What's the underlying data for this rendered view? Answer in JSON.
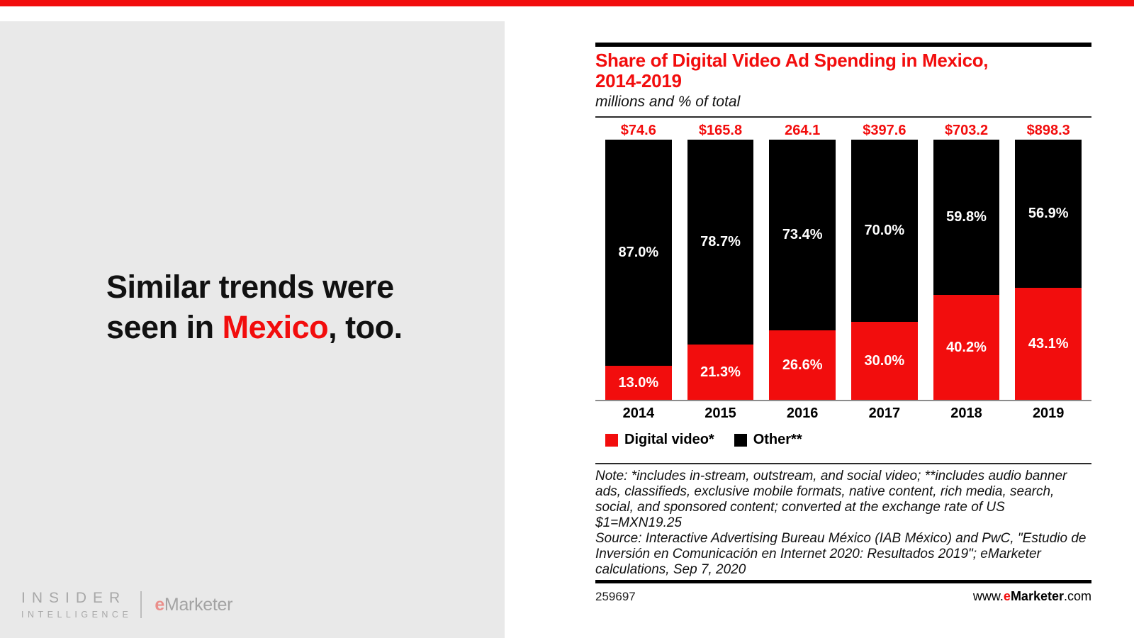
{
  "colors": {
    "accent_red": "#f20d0d",
    "bar_black": "#000000",
    "left_panel_gray": "#e9e9e9"
  },
  "left_panel": {
    "headline_line1": "Similar trends were",
    "headline_line2_prefix": "seen in ",
    "headline_highlight": "Mexico",
    "headline_line2_suffix": ", too.",
    "logo": {
      "line1": "INSIDER",
      "line2": "INTELLIGENCE",
      "brand_e": "e",
      "brand_rest": "Marketer"
    }
  },
  "chart": {
    "title_line1": "Share of Digital Video Ad Spending in Mexico,",
    "title_line2": "2014-2019",
    "subtitle": "millions and % of total",
    "note": "Note: *includes in-stream, outstream, and social video; **includes audio banner ads, classifieds, exclusive mobile formats, native content, rich media, search, social, and sponsored content; converted at the exchange rate of US $1=MXN19.25",
    "source": "Source: Interactive Advertising Bureau México (IAB México) and PwC, \"Estudio de Inversión en Comunicación en Internet 2020: Resultados 2019\"; eMarketer calculations, Sep 7, 2020",
    "chart_id": "259697",
    "website_prefix": "www.",
    "website_brand_e": "e",
    "website_brand_rest": "Marketer",
    "website_suffix": ".com",
    "legend": [
      {
        "label": "Digital video*",
        "color": "#f20d0d"
      },
      {
        "label": "Other**",
        "color": "#000000"
      }
    ]
  },
  "chart_data": {
    "type": "bar",
    "stacked": true,
    "title": "Share of Digital Video Ad Spending in Mexico, 2014-2019",
    "subtitle": "millions and % of total",
    "categories": [
      "2014",
      "2015",
      "2016",
      "2017",
      "2018",
      "2019"
    ],
    "totals_labels": [
      "$74.6",
      "$165.8",
      "264.1",
      "$397.6",
      "$703.2",
      "$898.3"
    ],
    "series": [
      {
        "name": "Digital video*",
        "color": "#f20d0d",
        "values": [
          13.0,
          21.3,
          26.6,
          30.0,
          40.2,
          43.1
        ],
        "labels": [
          "13.0%",
          "21.3%",
          "26.6%",
          "30.0%",
          "40.2%",
          "43.1%"
        ]
      },
      {
        "name": "Other**",
        "color": "#000000",
        "values": [
          87.0,
          78.7,
          73.4,
          70.0,
          59.8,
          56.9
        ],
        "labels": [
          "87.0%",
          "78.7%",
          "73.4%",
          "70.0%",
          "59.8%",
          "56.9%"
        ]
      }
    ],
    "ylim": [
      0,
      100
    ],
    "unit": "% of total",
    "grid": false,
    "legend_position": "bottom-left"
  }
}
